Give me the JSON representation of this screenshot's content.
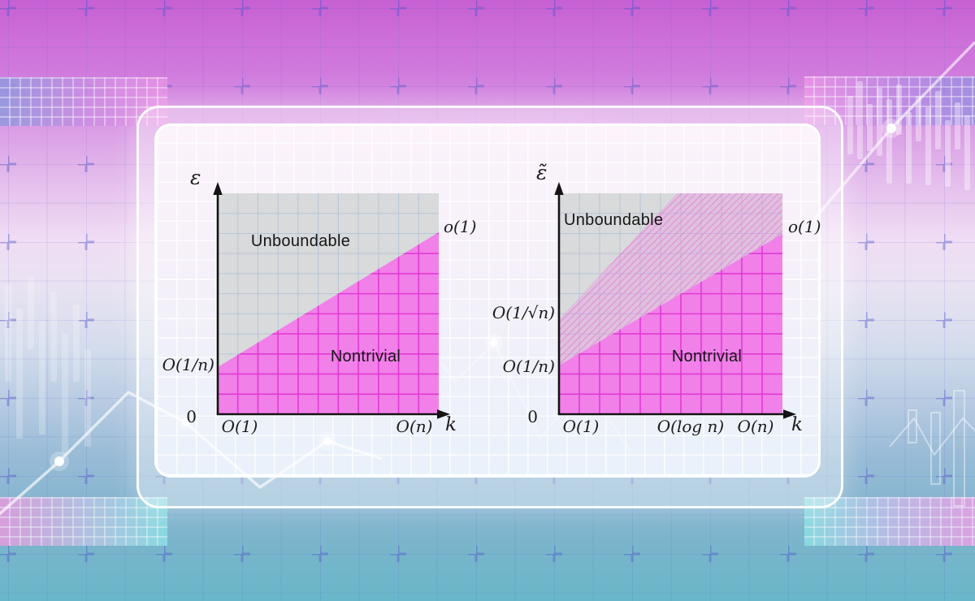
{
  "colors": {
    "magenta_fill": "#f180e9",
    "magenta_grid": "#e23ad5",
    "gray_fill": "#d9dadb",
    "gray_grid": "#b7c5d6",
    "hatch_pink": "#e964dc",
    "axis": "#141414"
  },
  "diagrams": [
    {
      "y_axis_label": "ε",
      "x_axis_label": "k",
      "origin_label": "0",
      "upper_region_label": "Unboundable",
      "lower_region_label": "Nontrivial",
      "right_label": "o(1)",
      "y_ticks": [
        "O(1/n)"
      ],
      "x_ticks": [
        "O(1)",
        "O(n)"
      ]
    },
    {
      "y_axis_label": "ε̃",
      "x_axis_label": "k",
      "origin_label": "0",
      "upper_region_label": "Unboundable",
      "lower_region_label": "Nontrivial",
      "right_label": "o(1)",
      "y_ticks": [
        "O(1/√n)",
        "O(1/n)"
      ],
      "x_ticks": [
        "O(1)",
        "O(log n)",
        "O(n)"
      ]
    }
  ],
  "chart_data": [
    {
      "type": "area",
      "title": "",
      "xlabel": "k",
      "ylabel": "ε",
      "x_ticks": [
        "0",
        "O(1)",
        "O(n)"
      ],
      "y_ticks": [
        "0",
        "O(1/n)",
        "o(1)"
      ],
      "regions": [
        {
          "name": "Unboundable",
          "fill": "gray",
          "position": "above boundary line"
        },
        {
          "name": "Nontrivial",
          "fill": "magenta",
          "position": "below boundary line"
        }
      ],
      "boundary_line": {
        "from": [
          "O(1)",
          "O(1/n)"
        ],
        "to": [
          "O(n)",
          "o(1)"
        ]
      },
      "grid": true,
      "legend": false
    },
    {
      "type": "area",
      "title": "",
      "xlabel": "k",
      "ylabel": "ε̃",
      "x_ticks": [
        "0",
        "O(1)",
        "O(log n)",
        "O(n)"
      ],
      "y_ticks": [
        "0",
        "O(1/n)",
        "O(1/√n)",
        "o(1)"
      ],
      "regions": [
        {
          "name": "Unboundable",
          "fill": "gray",
          "position": "above hatched band"
        },
        {
          "name": "hatched uncertainty band",
          "fill": "pink-hatch",
          "position": "between line from (O(1),O(1/√n)) to top edge near O(log n) and the Nontrivial boundary"
        },
        {
          "name": "Nontrivial",
          "fill": "magenta",
          "position": "below boundary line"
        }
      ],
      "boundary_line": {
        "from": [
          "O(1)",
          "O(1/n)"
        ],
        "to": [
          "O(n)",
          "o(1)"
        ]
      },
      "grid": true,
      "legend": false
    }
  ]
}
